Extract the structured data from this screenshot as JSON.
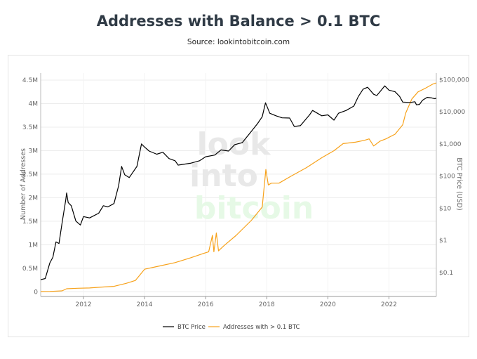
{
  "title": "Addresses with Balance > 0.1 BTC",
  "subtitle": "Source: lookintobitcoin.com",
  "watermark": [
    "look",
    "into",
    "bitcoin"
  ],
  "chart_data": {
    "type": "line",
    "title": "Addresses with Balance > 0.1 BTC",
    "xlabel": "",
    "ylabel_left": "Number of Addresses",
    "ylabel_right": "BTC Price (USD)",
    "x_range": [
      2010.6,
      2023.55
    ],
    "x_ticks": [
      2012,
      2014,
      2016,
      2018,
      2020,
      2022
    ],
    "y_left_range": [
      -100000,
      4650000
    ],
    "y_left_ticks": [
      0,
      500000,
      1000000,
      1500000,
      2000000,
      2500000,
      3000000,
      3500000,
      4000000,
      4500000
    ],
    "y_left_tick_labels": [
      "0",
      "0.5M",
      "1M",
      "1.5M",
      "2M",
      "2.5M",
      "3M",
      "3.5M",
      "4M",
      "4.5M"
    ],
    "y_right_scale": "log",
    "y_right_range": [
      0.018,
      160000
    ],
    "y_right_ticks": [
      0.1,
      1,
      10,
      100,
      1000,
      10000,
      100000
    ],
    "y_right_tick_labels": [
      "$0.1",
      "$1",
      "$10",
      "$100",
      "$1,000",
      "$10,000",
      "$100,000"
    ],
    "grid": true,
    "legend_position": "bottom-center",
    "series": [
      {
        "name": "BTC Price",
        "axis": "right",
        "color": "#000000",
        "points": [
          [
            2010.6,
            0.06
          ],
          [
            2010.75,
            0.065
          ],
          [
            2010.9,
            0.2
          ],
          [
            2011.0,
            0.3
          ],
          [
            2011.1,
            0.9
          ],
          [
            2011.2,
            0.8
          ],
          [
            2011.3,
            3.5
          ],
          [
            2011.42,
            18
          ],
          [
            2011.45,
            30
          ],
          [
            2011.5,
            15
          ],
          [
            2011.6,
            12
          ],
          [
            2011.75,
            4
          ],
          [
            2011.9,
            3
          ],
          [
            2012.0,
            5.5
          ],
          [
            2012.2,
            5
          ],
          [
            2012.5,
            7
          ],
          [
            2012.65,
            12
          ],
          [
            2012.8,
            11
          ],
          [
            2013.0,
            14
          ],
          [
            2013.15,
            50
          ],
          [
            2013.25,
            200
          ],
          [
            2013.35,
            110
          ],
          [
            2013.5,
            90
          ],
          [
            2013.75,
            200
          ],
          [
            2013.9,
            1000
          ],
          [
            2014.0,
            800
          ],
          [
            2014.15,
            600
          ],
          [
            2014.4,
            480
          ],
          [
            2014.6,
            550
          ],
          [
            2014.8,
            350
          ],
          [
            2015.0,
            300
          ],
          [
            2015.1,
            220
          ],
          [
            2015.5,
            250
          ],
          [
            2015.8,
            300
          ],
          [
            2016.0,
            400
          ],
          [
            2016.3,
            450
          ],
          [
            2016.5,
            650
          ],
          [
            2016.75,
            600
          ],
          [
            2016.95,
            950
          ],
          [
            2017.2,
            1100
          ],
          [
            2017.5,
            2500
          ],
          [
            2017.7,
            4300
          ],
          [
            2017.85,
            7000
          ],
          [
            2017.96,
            19000
          ],
          [
            2018.1,
            9000
          ],
          [
            2018.3,
            7500
          ],
          [
            2018.5,
            6500
          ],
          [
            2018.75,
            6400
          ],
          [
            2018.9,
            3500
          ],
          [
            2019.1,
            3700
          ],
          [
            2019.4,
            8000
          ],
          [
            2019.5,
            11000
          ],
          [
            2019.8,
            7500
          ],
          [
            2020.0,
            8000
          ],
          [
            2020.2,
            5500
          ],
          [
            2020.35,
            9000
          ],
          [
            2020.6,
            11000
          ],
          [
            2020.85,
            15000
          ],
          [
            2021.0,
            30000
          ],
          [
            2021.15,
            50000
          ],
          [
            2021.3,
            58000
          ],
          [
            2021.5,
            35000
          ],
          [
            2021.6,
            32000
          ],
          [
            2021.75,
            47000
          ],
          [
            2021.86,
            64000
          ],
          [
            2022.0,
            47000
          ],
          [
            2022.2,
            42000
          ],
          [
            2022.35,
            30000
          ],
          [
            2022.45,
            20000
          ],
          [
            2022.7,
            19500
          ],
          [
            2022.85,
            20500
          ],
          [
            2022.9,
            16500
          ],
          [
            2023.0,
            17000
          ],
          [
            2023.1,
            23000
          ],
          [
            2023.25,
            28000
          ],
          [
            2023.4,
            27000
          ],
          [
            2023.5,
            25500
          ],
          [
            2023.55,
            26500
          ]
        ]
      },
      {
        "name": "Addresses with > 0.1 BTC",
        "axis": "left",
        "color": "#f7a21b",
        "points": [
          [
            2010.6,
            5000
          ],
          [
            2010.9,
            6000
          ],
          [
            2011.3,
            20000
          ],
          [
            2011.45,
            65000
          ],
          [
            2011.8,
            75000
          ],
          [
            2012.2,
            80000
          ],
          [
            2012.6,
            100000
          ],
          [
            2013.0,
            115000
          ],
          [
            2013.4,
            180000
          ],
          [
            2013.7,
            240000
          ],
          [
            2014.0,
            480000
          ],
          [
            2014.5,
            550000
          ],
          [
            2015.0,
            620000
          ],
          [
            2015.5,
            720000
          ],
          [
            2015.95,
            820000
          ],
          [
            2016.1,
            850000
          ],
          [
            2016.22,
            1200000
          ],
          [
            2016.27,
            850000
          ],
          [
            2016.35,
            1250000
          ],
          [
            2016.42,
            870000
          ],
          [
            2016.6,
            980000
          ],
          [
            2017.0,
            1200000
          ],
          [
            2017.5,
            1520000
          ],
          [
            2017.85,
            1800000
          ],
          [
            2017.97,
            2600000
          ],
          [
            2018.05,
            2270000
          ],
          [
            2018.15,
            2310000
          ],
          [
            2018.4,
            2310000
          ],
          [
            2018.8,
            2460000
          ],
          [
            2019.3,
            2640000
          ],
          [
            2019.8,
            2850000
          ],
          [
            2020.2,
            3000000
          ],
          [
            2020.5,
            3150000
          ],
          [
            2020.9,
            3180000
          ],
          [
            2021.2,
            3220000
          ],
          [
            2021.35,
            3250000
          ],
          [
            2021.5,
            3100000
          ],
          [
            2021.7,
            3200000
          ],
          [
            2021.9,
            3250000
          ],
          [
            2022.2,
            3350000
          ],
          [
            2022.45,
            3550000
          ],
          [
            2022.55,
            3800000
          ],
          [
            2022.75,
            4100000
          ],
          [
            2022.95,
            4250000
          ],
          [
            2023.2,
            4330000
          ],
          [
            2023.45,
            4420000
          ],
          [
            2023.55,
            4440000
          ]
        ]
      }
    ]
  }
}
